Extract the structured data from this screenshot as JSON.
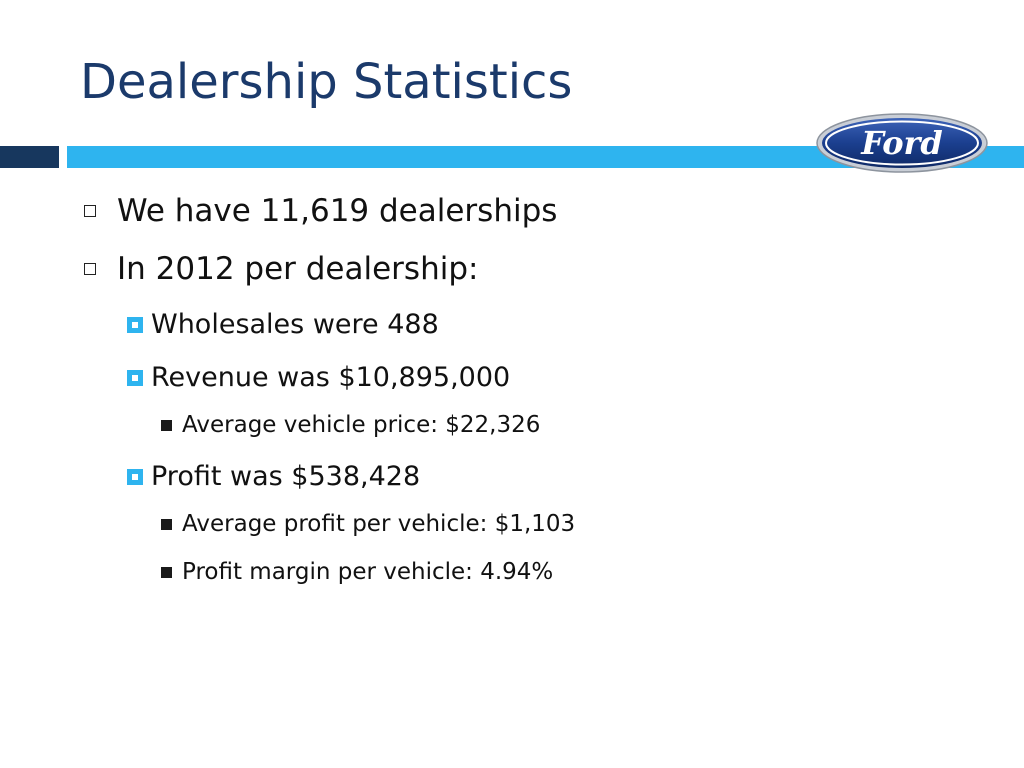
{
  "slide": {
    "title": "Dealership Statistics",
    "logo_text": "Ford",
    "colors": {
      "title": "#1b3a6b",
      "bar_dark": "#17375e",
      "bar_light": "#2eb4ef",
      "logo_blue": "#1b3f8f"
    },
    "bullets": [
      {
        "level": 1,
        "icon": "hollow-square-bullet-icon",
        "text": "We have 11,619 dealerships"
      },
      {
        "level": 1,
        "icon": "hollow-square-bullet-icon",
        "text": "In 2012 per dealership:"
      },
      {
        "level": 2,
        "icon": "blue-square-bullet-icon",
        "text": "Wholesales were 488"
      },
      {
        "level": 2,
        "icon": "blue-square-bullet-icon",
        "text": "Revenue was $10,895,000"
      },
      {
        "level": 3,
        "icon": "black-square-bullet-icon",
        "text": "Average vehicle price: $22,326"
      },
      {
        "level": 2,
        "icon": "blue-square-bullet-icon",
        "text": "Profit was $538,428"
      },
      {
        "level": 3,
        "icon": "black-square-bullet-icon",
        "text": "Average profit per vehicle: $1,103"
      },
      {
        "level": 3,
        "icon": "black-square-bullet-icon",
        "text": "Profit margin per vehicle: 4.94%"
      }
    ]
  }
}
